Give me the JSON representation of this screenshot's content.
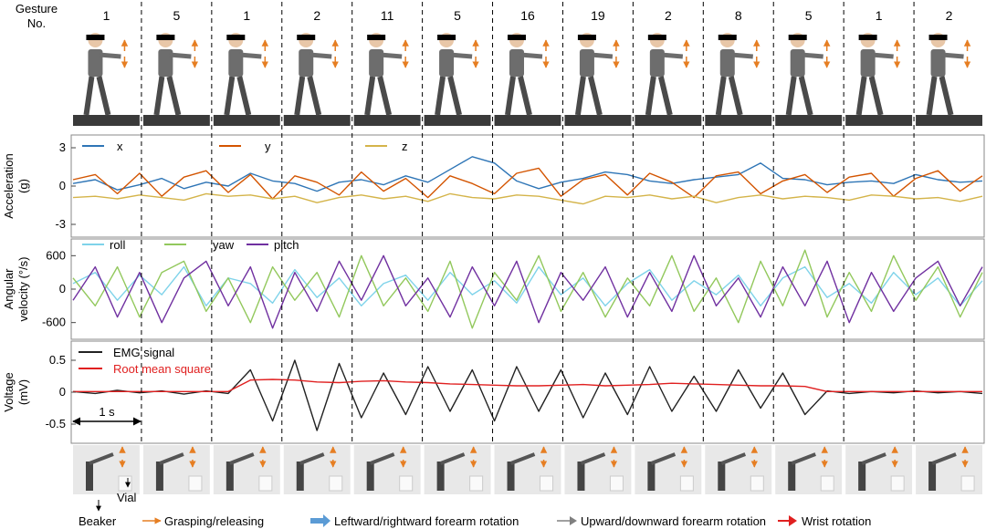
{
  "figure": {
    "gesture_header": "Gesture No.",
    "gesture_header_line1": "Gesture",
    "gesture_header_line2": "No.",
    "gesture_numbers": [
      "1",
      "5",
      "1",
      "2",
      "11",
      "5",
      "16",
      "19",
      "2",
      "8",
      "5",
      "1",
      "2"
    ],
    "time_scale_label": "1 s",
    "beaker_label": "Beaker",
    "vial_label": "Vial",
    "bottom_legend": [
      {
        "label": "Grasping/releasing",
        "color": "#e67e22"
      },
      {
        "label": "Leftward/rightward forearm rotation",
        "color": "#5b9bd5"
      },
      {
        "label": "Upward/downward forearm rotation",
        "color": "#808080"
      },
      {
        "label": "Wrist rotation",
        "color": "#e02020"
      }
    ]
  },
  "chart_data": [
    {
      "type": "line",
      "ylabel": "Acceleration (g)",
      "ylabel_line1": "Acceleration",
      "ylabel_line2": "(g)",
      "yticks": [
        "3",
        "0",
        "-3"
      ],
      "ylim": [
        -4,
        4
      ],
      "series": [
        {
          "name": "x",
          "color": "#2e75b6",
          "values": [
            0.2,
            0.5,
            -0.3,
            0.1,
            0.6,
            -0.2,
            0.3,
            0.0,
            1.0,
            0.4,
            0.2,
            -0.4,
            0.3,
            0.5,
            0.1,
            0.8,
            0.3,
            1.3,
            2.3,
            1.8,
            0.4,
            -0.2,
            0.3,
            0.6,
            1.1,
            0.9,
            0.4,
            0.2,
            0.5,
            0.7,
            0.9,
            1.8,
            0.6,
            0.5,
            0.1,
            0.3,
            0.4,
            0.2,
            0.9,
            0.5,
            0.3,
            0.4
          ]
        },
        {
          "name": "y",
          "color": "#d35400",
          "values": [
            0.5,
            0.9,
            -0.6,
            1.0,
            -0.8,
            0.7,
            1.2,
            -0.5,
            0.9,
            -1.0,
            0.8,
            0.3,
            -0.7,
            1.1,
            -0.4,
            0.6,
            -0.9,
            0.8,
            0.2,
            -0.6,
            1.0,
            1.4,
            -0.8,
            0.5,
            0.9,
            -0.7,
            1.0,
            0.3,
            -0.9,
            0.8,
            1.1,
            -0.6,
            0.4,
            0.9,
            -0.5,
            0.7,
            1.0,
            -0.8,
            0.6,
            1.2,
            -0.4,
            0.8
          ]
        },
        {
          "name": "z",
          "color": "#d4b44a",
          "values": [
            -0.9,
            -0.8,
            -1.0,
            -0.7,
            -0.9,
            -1.1,
            -0.6,
            -0.8,
            -0.7,
            -1.0,
            -0.8,
            -1.3,
            -0.9,
            -0.7,
            -1.0,
            -0.8,
            -1.2,
            -0.6,
            -0.9,
            -1.0,
            -0.7,
            -0.8,
            -1.1,
            -1.4,
            -0.8,
            -0.9,
            -0.7,
            -1.0,
            -0.8,
            -1.3,
            -0.9,
            -0.7,
            -1.0,
            -0.8,
            -0.9,
            -1.1,
            -0.7,
            -0.8,
            -1.0,
            -0.9,
            -1.2,
            -0.8
          ]
        }
      ]
    },
    {
      "type": "line",
      "ylabel": "Angular velocity (°/s)",
      "ylabel_line1": "Angular",
      "ylabel_line2": "velocity (°/s)",
      "yticks": [
        "600",
        "0",
        "-600"
      ],
      "ylim": [
        -900,
        900
      ],
      "series": [
        {
          "name": "roll",
          "color": "#7fd3ea",
          "values": [
            100,
            300,
            -200,
            250,
            -100,
            400,
            -300,
            200,
            100,
            -250,
            350,
            -150,
            200,
            -300,
            100,
            250,
            -200,
            300,
            -100,
            150,
            -250,
            400,
            -100,
            200,
            -300,
            100,
            350,
            -200,
            150,
            -100,
            250,
            -300,
            200,
            400,
            -150,
            100,
            -250,
            300,
            -100,
            200,
            -300,
            150
          ]
        },
        {
          "name": "yaw",
          "color": "#92c85c",
          "values": [
            200,
            -300,
            400,
            -500,
            300,
            500,
            -400,
            200,
            -600,
            400,
            -200,
            300,
            -500,
            600,
            -300,
            200,
            -400,
            500,
            -700,
            300,
            -200,
            600,
            -400,
            300,
            -500,
            200,
            -300,
            600,
            -400,
            200,
            -600,
            500,
            -300,
            700,
            -500,
            300,
            -400,
            600,
            -200,
            400,
            -500,
            300
          ]
        },
        {
          "name": "pitch",
          "color": "#7030a0",
          "values": [
            -200,
            400,
            -500,
            300,
            -600,
            200,
            500,
            -300,
            400,
            -700,
            300,
            -400,
            500,
            -200,
            600,
            -300,
            200,
            -500,
            400,
            -300,
            500,
            -600,
            300,
            -200,
            400,
            -500,
            300,
            -400,
            600,
            -300,
            200,
            -500,
            400,
            -300,
            500,
            -600,
            300,
            -400,
            200,
            500,
            -300,
            400
          ]
        }
      ]
    },
    {
      "type": "line",
      "ylabel": "Voltage (mV)",
      "ylabel_line1": "Voltage",
      "ylabel_line2": "(mV)",
      "yticks": [
        "0.5",
        "0",
        "-0.5"
      ],
      "ylim": [
        -0.8,
        0.8
      ],
      "series": [
        {
          "name": "EMG signal",
          "color": "#222222",
          "values": [
            0.01,
            -0.02,
            0.03,
            -0.01,
            0.02,
            -0.03,
            0.02,
            -0.02,
            0.35,
            -0.45,
            0.5,
            -0.6,
            0.45,
            -0.4,
            0.3,
            -0.35,
            0.4,
            -0.3,
            0.35,
            -0.45,
            0.4,
            -0.3,
            0.35,
            -0.4,
            0.3,
            -0.35,
            0.4,
            -0.3,
            0.25,
            -0.3,
            0.35,
            -0.25,
            0.3,
            -0.35,
            0.02,
            -0.02,
            0.01,
            -0.01,
            0.02,
            -0.01,
            0.01,
            -0.02
          ]
        },
        {
          "name": "Root mean square",
          "color": "#e02020",
          "values": [
            0.01,
            0.01,
            0.01,
            0.01,
            0.01,
            0.01,
            0.01,
            0.01,
            0.19,
            0.2,
            0.19,
            0.16,
            0.15,
            0.17,
            0.18,
            0.16,
            0.15,
            0.13,
            0.12,
            0.11,
            0.1,
            0.1,
            0.11,
            0.12,
            0.1,
            0.11,
            0.12,
            0.14,
            0.13,
            0.12,
            0.11,
            0.1,
            0.1,
            0.09,
            0.01,
            0.01,
            0.01,
            0.01,
            0.01,
            0.01,
            0.01,
            0.01
          ]
        }
      ]
    }
  ]
}
